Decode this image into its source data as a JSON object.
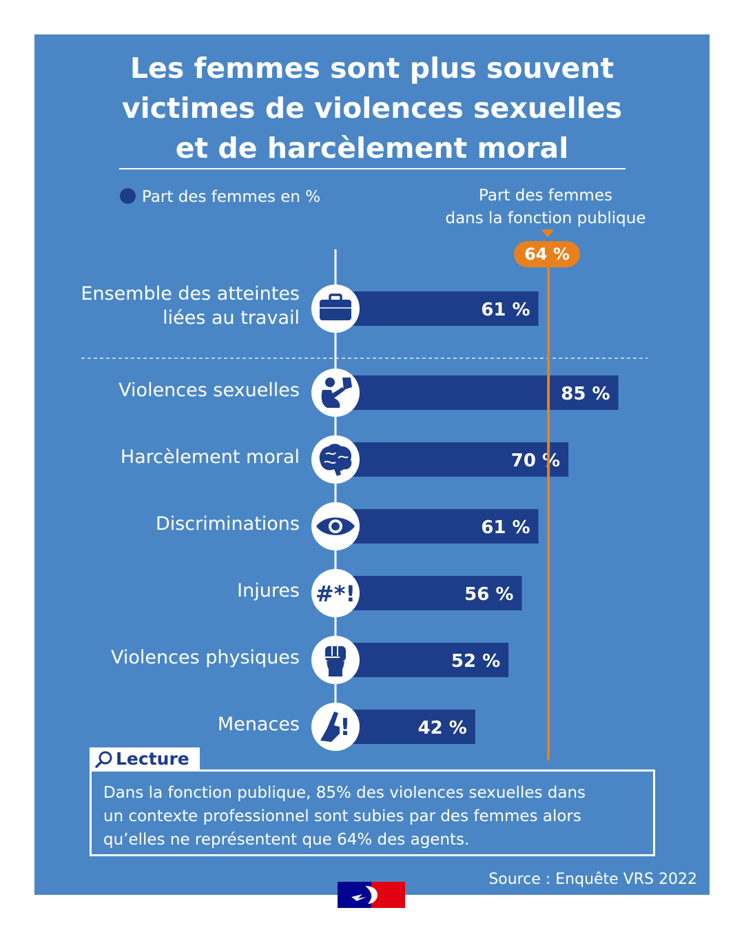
{
  "title": {
    "line1": "Les femmes sont plus souvent",
    "line2": "victimes de violences sexuelles",
    "line3": "et de harcèlement moral"
  },
  "legend": {
    "label": "Part des femmes en %"
  },
  "reference": {
    "line1": "Part des femmes",
    "line2": "dans la fonction publique",
    "value": 64,
    "value_label": "64 %",
    "color": "#e8801e"
  },
  "chart_data": {
    "type": "bar",
    "orientation": "horizontal",
    "unit": "%",
    "bar_color": "#1d3d8a",
    "categories": [
      {
        "label_lines": [
          "Ensemble des atteintes",
          "liées au travail"
        ],
        "value": 61,
        "value_label": "61 %",
        "icon": "briefcase-icon"
      },
      {
        "label_lines": [
          "Violences sexuelles"
        ],
        "value": 85,
        "value_label": "85 %",
        "icon": "crouching-person-icon"
      },
      {
        "label_lines": [
          "Harcèlement moral"
        ],
        "value": 70,
        "value_label": "70 %",
        "icon": "brain-icon"
      },
      {
        "label_lines": [
          "Discriminations"
        ],
        "value": 61,
        "value_label": "61 %",
        "icon": "eye-icon"
      },
      {
        "label_lines": [
          "Injures"
        ],
        "value": 56,
        "value_label": "56 %",
        "icon": "symbols-icon"
      },
      {
        "label_lines": [
          "Violences physiques"
        ],
        "value": 52,
        "value_label": "52 %",
        "icon": "fist-icon"
      },
      {
        "label_lines": [
          "Menaces"
        ],
        "value": 42,
        "value_label": "42 %",
        "icon": "pointing-hand-icon"
      }
    ],
    "symbols_text": "#*!",
    "exclamation_text": "!",
    "reference_value": 64
  },
  "lecture": {
    "heading": "Lecture",
    "line1": "Dans la fonction publique, 85% des violences sexuelles dans",
    "line2": "un contexte professionnel sont subies par des femmes alors",
    "line3": "qu’elles ne représentent que 64% des agents."
  },
  "source": "Source : Enquête VRS 2022"
}
